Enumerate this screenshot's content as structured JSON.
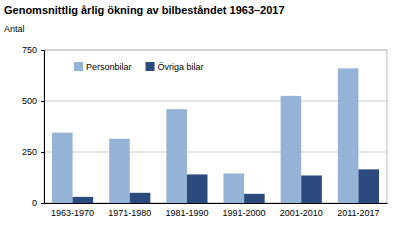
{
  "chart_data": {
    "type": "bar",
    "title": "Genomsnittlig årlig ökning av bilbeståndet 1963–2017",
    "y_label": "Antal",
    "categories": [
      "1963-1970",
      "1971-1980",
      "1981-1990",
      "1991-2000",
      "2001-2010",
      "2011-2017"
    ],
    "series": [
      {
        "name": "Personbilar",
        "color": "#95b3d7",
        "values": [
          345,
          315,
          460,
          145,
          525,
          660
        ]
      },
      {
        "name": "Övriga bilar",
        "color": "#2b4a7d",
        "values": [
          30,
          50,
          140,
          45,
          135,
          165
        ]
      }
    ],
    "ylim": [
      0,
      750
    ],
    "yticks": [
      0,
      250,
      500,
      750
    ],
    "grid": true,
    "legend": "top-left"
  }
}
